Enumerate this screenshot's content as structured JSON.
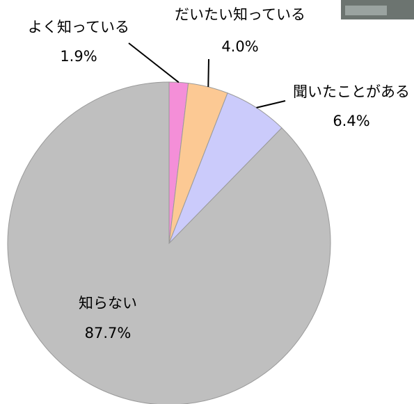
{
  "chart_data": {
    "type": "pie",
    "categories": [
      "よく知っている",
      "だいたい知っている",
      "聞いたことがある",
      "知らない"
    ],
    "values": [
      1.9,
      4.0,
      6.4,
      87.7
    ],
    "value_labels": [
      "1.9%",
      "4.0%",
      "6.4%",
      "87.7%"
    ],
    "colors": [
      "#f48fd8",
      "#fcc994",
      "#cbcbfb",
      "#bfbfbf"
    ]
  }
}
